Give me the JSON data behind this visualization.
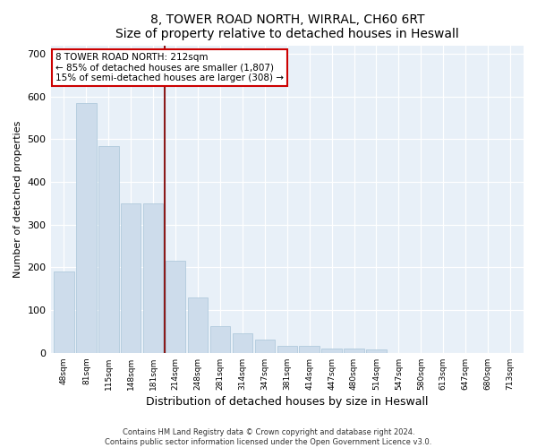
{
  "title": "8, TOWER ROAD NORTH, WIRRAL, CH60 6RT",
  "subtitle": "Size of property relative to detached houses in Heswall",
  "xlabel": "Distribution of detached houses by size in Heswall",
  "ylabel": "Number of detached properties",
  "bar_color": "#cddceb",
  "bar_edge_color": "#a8c4d8",
  "background_color": "#e8f0f8",
  "categories": [
    "48sqm",
    "81sqm",
    "115sqm",
    "148sqm",
    "181sqm",
    "214sqm",
    "248sqm",
    "281sqm",
    "314sqm",
    "347sqm",
    "381sqm",
    "414sqm",
    "447sqm",
    "480sqm",
    "514sqm",
    "547sqm",
    "580sqm",
    "613sqm",
    "647sqm",
    "680sqm",
    "713sqm"
  ],
  "values": [
    190,
    585,
    485,
    350,
    350,
    215,
    130,
    63,
    45,
    32,
    17,
    17,
    10,
    10,
    7,
    0,
    0,
    0,
    0,
    0,
    0
  ],
  "vline_x": 4.5,
  "vline_color": "#8b1a1a",
  "ylim": [
    0,
    720
  ],
  "yticks": [
    0,
    100,
    200,
    300,
    400,
    500,
    600,
    700
  ],
  "annotation_title": "8 TOWER ROAD NORTH: 212sqm",
  "annotation_line1": "← 85% of detached houses are smaller (1,807)",
  "annotation_line2": "15% of semi-detached houses are larger (308) →",
  "annotation_box_color": "#ffffff",
  "annotation_box_edge": "#cc0000",
  "footer_line1": "Contains HM Land Registry data © Crown copyright and database right 2024.",
  "footer_line2": "Contains public sector information licensed under the Open Government Licence v3.0."
}
